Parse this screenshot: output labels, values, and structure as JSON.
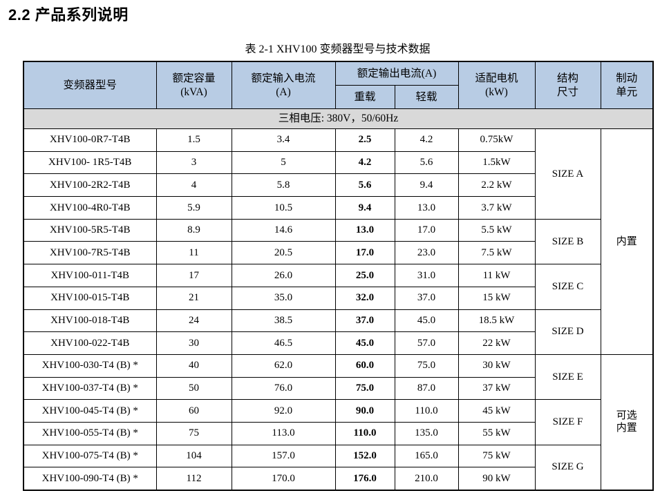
{
  "page": {
    "heading": "2.2 产品系列说明",
    "caption": "表 2-1 XHV100 变频器型号与技术数据"
  },
  "table": {
    "columns": {
      "model": "变频器型号",
      "capacity_l1": "额定容量",
      "capacity_l2": "(kVA)",
      "input_l1": "额定输入电流",
      "input_l2": "(A)",
      "output_group": "额定输出电流(A)",
      "heavy": "重载",
      "light": "轻载",
      "motor_l1": "适配电机",
      "motor_l2": "(kW)",
      "size_l1": "结构",
      "size_l2": "尺寸",
      "brake_l1": "制动",
      "brake_l2": "单元"
    },
    "banner": "三相电压:   380V，50/60Hz",
    "rows": [
      {
        "model": "XHV100-0R7-T4B",
        "kva": "1.5",
        "input": "3.4",
        "heavy": "2.5",
        "light": "4.2",
        "motor": "0.75kW"
      },
      {
        "model": "XHV100- 1R5-T4B",
        "kva": "3",
        "input": "5",
        "heavy": "4.2",
        "light": "5.6",
        "motor": "1.5kW"
      },
      {
        "model": "XHV100-2R2-T4B",
        "kva": "4",
        "input": "5.8",
        "heavy": "5.6",
        "light": "9.4",
        "motor": "2.2 kW"
      },
      {
        "model": "XHV100-4R0-T4B",
        "kva": "5.9",
        "input": "10.5",
        "heavy": "9.4",
        "light": "13.0",
        "motor": "3.7 kW"
      },
      {
        "model": "XHV100-5R5-T4B",
        "kva": "8.9",
        "input": "14.6",
        "heavy": "13.0",
        "light": "17.0",
        "motor": "5.5 kW"
      },
      {
        "model": "XHV100-7R5-T4B",
        "kva": "11",
        "input": "20.5",
        "heavy": "17.0",
        "light": "23.0",
        "motor": "7.5 kW"
      },
      {
        "model": "XHV100-011-T4B",
        "kva": "17",
        "input": "26.0",
        "heavy": "25.0",
        "light": "31.0",
        "motor": "11 kW"
      },
      {
        "model": "XHV100-015-T4B",
        "kva": "21",
        "input": "35.0",
        "heavy": "32.0",
        "light": "37.0",
        "motor": "15 kW"
      },
      {
        "model": "XHV100-018-T4B",
        "kva": "24",
        "input": "38.5",
        "heavy": "37.0",
        "light": "45.0",
        "motor": "18.5 kW"
      },
      {
        "model": "XHV100-022-T4B",
        "kva": "30",
        "input": "46.5",
        "heavy": "45.0",
        "light": "57.0",
        "motor": "22 kW"
      },
      {
        "model": "XHV100-030-T4 (B) *",
        "kva": "40",
        "input": "62.0",
        "heavy": "60.0",
        "light": "75.0",
        "motor": "30 kW"
      },
      {
        "model": "XHV100-037-T4 (B) *",
        "kva": "50",
        "input": "76.0",
        "heavy": "75.0",
        "light": "87.0",
        "motor": "37 kW"
      },
      {
        "model": "XHV100-045-T4 (B) *",
        "kva": "60",
        "input": "92.0",
        "heavy": "90.0",
        "light": "110.0",
        "motor": "45 kW"
      },
      {
        "model": "XHV100-055-T4 (B) *",
        "kva": "75",
        "input": "113.0",
        "heavy": "110.0",
        "light": "135.0",
        "motor": "55 kW"
      },
      {
        "model": "XHV100-075-T4 (B) *",
        "kva": "104",
        "input": "157.0",
        "heavy": "152.0",
        "light": "165.0",
        "motor": "75 kW"
      },
      {
        "model": "XHV100-090-T4 (B) *",
        "kva": "112",
        "input": "170.0",
        "heavy": "176.0",
        "light": "210.0",
        "motor": "90 kW"
      }
    ],
    "size_groups": [
      {
        "label": "SIZE A",
        "span": 4
      },
      {
        "label": "SIZE B",
        "span": 2
      },
      {
        "label": "SIZE C",
        "span": 2
      },
      {
        "label": "SIZE D",
        "span": 2
      },
      {
        "label": "SIZE E",
        "span": 2
      },
      {
        "label": "SIZE F",
        "span": 2
      },
      {
        "label": "SIZE G",
        "span": 2
      }
    ],
    "brake_groups": [
      {
        "label": "内置",
        "lines": [
          "内置"
        ],
        "span": 10
      },
      {
        "label": "可选内置",
        "lines": [
          "可选",
          "内置"
        ],
        "span": 6
      }
    ],
    "colors": {
      "header_bg": "#b8cce4",
      "banner_bg": "#d9d9d9",
      "border": "#000000"
    }
  }
}
